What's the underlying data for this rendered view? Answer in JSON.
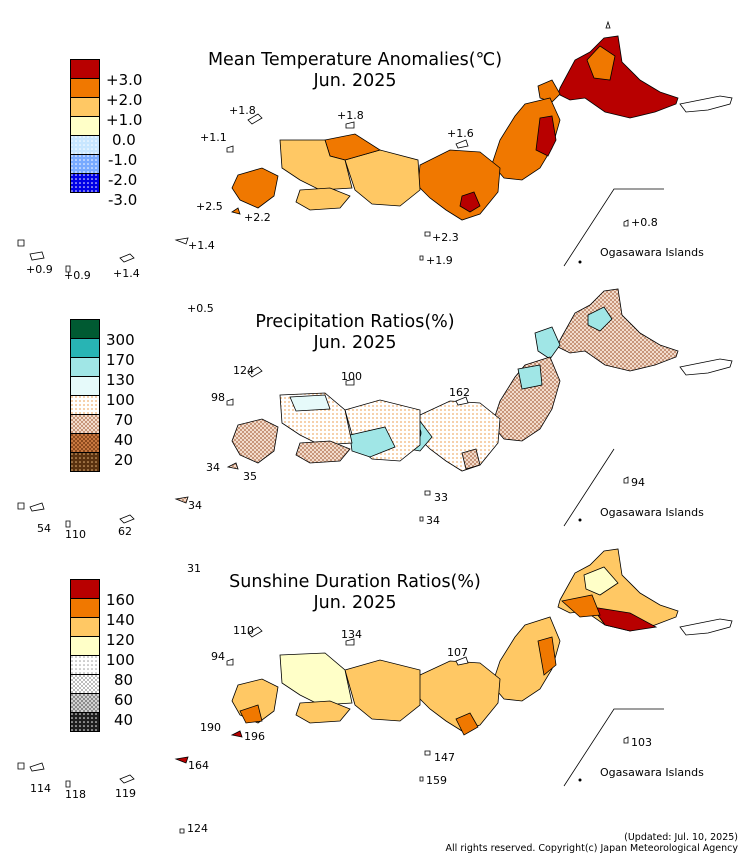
{
  "temperature": {
    "title_line1": "Mean Temperature Anomalies(℃)",
    "title_line2": "Jun. 2025",
    "legend": [
      {
        "label": "+3.0",
        "color": "#b80000"
      },
      {
        "label": "+2.0",
        "color": "#f07800"
      },
      {
        "label": "+1.0",
        "color": "#ffc864"
      },
      {
        "label": "0.0",
        "color": "#ffffc8"
      },
      {
        "label": "-1.0",
        "color": "#c8e6ff"
      },
      {
        "label": "-2.0",
        "color": "#78aaff"
      },
      {
        "label": "-3.0",
        "color": "#0000e6"
      }
    ],
    "stations": {
      "s1": "+1.8",
      "s2": "+1.1",
      "s3": "+1.8",
      "s4": "+1.6",
      "s5": "+2.5",
      "s6": "+2.2",
      "s7": "+2.3",
      "s8": "+1.9",
      "s9": "+1.4",
      "s10": "+0.9",
      "s11": "+0.9",
      "s12": "+1.4",
      "s13": "+0.5",
      "s14": "+0.8"
    },
    "ogasawara": "Ogasawara Islands"
  },
  "precipitation": {
    "title_line1": "Precipitation Ratios(%)",
    "title_line2": "Jun. 2025",
    "legend": [
      {
        "label": "300",
        "color": "#005a32"
      },
      {
        "label": "170",
        "color": "#28b4b4"
      },
      {
        "label": "130",
        "color": "#a0e6e6"
      },
      {
        "label": "100",
        "color": "#e6fafa"
      },
      {
        "label": "70",
        "color": "#fff0dc"
      },
      {
        "label": "40",
        "color": "#e8c8b0"
      },
      {
        "label": "20",
        "color": "#a05a28"
      },
      {
        "label": "",
        "color": "#5a3210"
      }
    ],
    "stations": {
      "s1": "124",
      "s2": "100",
      "s3": "98",
      "s4": "162",
      "s5": "34",
      "s6": "35",
      "s7": "33",
      "s8": "34",
      "s9": "54",
      "s10": "110",
      "s11": "62",
      "s12": "34",
      "s13": "31",
      "s14": "94"
    },
    "ogasawara": "Ogasawara Islands"
  },
  "sunshine": {
    "title_line1": "Sunshine Duration Ratios(%)",
    "title_line2": "Jun. 2025",
    "legend": [
      {
        "label": "160",
        "color": "#b80000"
      },
      {
        "label": "140",
        "color": "#f07800"
      },
      {
        "label": "120",
        "color": "#ffc864"
      },
      {
        "label": "100",
        "color": "#ffffc8"
      },
      {
        "label": "80",
        "color": "#ffffff"
      },
      {
        "label": "60",
        "color": "#d2d2d2"
      },
      {
        "label": "40",
        "color": "#8c8c8c"
      },
      {
        "label": "",
        "color": "#282828"
      }
    ],
    "stations": {
      "s1": "110",
      "s2": "134",
      "s3": "94",
      "s4": "107",
      "s5": "190",
      "s6": "196",
      "s7": "147",
      "s8": "159",
      "s9": "114",
      "s10": "118",
      "s11": "119",
      "s12": "164",
      "s13": "124",
      "s14": "103"
    },
    "ogasawara": "Ogasawara Islands"
  },
  "footer": {
    "updated": "(Updated: Jul. 10, 2025)",
    "copyright": "All rights reserved. Copyright(c) Japan Meteorological Agency"
  }
}
